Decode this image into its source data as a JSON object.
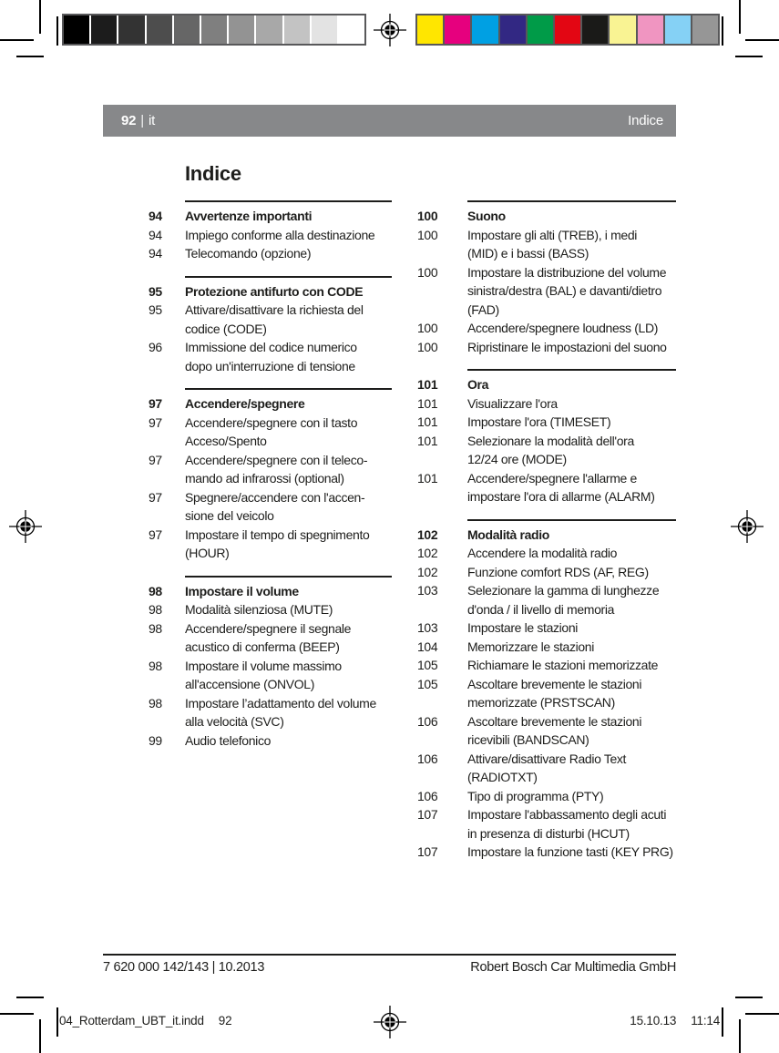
{
  "print_marks": {
    "grayscale_bar": [
      "#000000",
      "#1c1c1c",
      "#333333",
      "#4d4d4d",
      "#666666",
      "#7f7f7f",
      "#939393",
      "#a8a8a8",
      "#c3c3c3",
      "#e3e3e3",
      "#ffffff"
    ],
    "color_bar": [
      "#ffe600",
      "#e6007e",
      "#00a0e3",
      "#322883",
      "#009b48",
      "#e30613",
      "#1a1a18",
      "#f9f393",
      "#f095c1",
      "#85d1f5",
      "#969696"
    ],
    "header_bar_color": "#87888a",
    "text_color": "#1d1d1b"
  },
  "header": {
    "page_number": "92",
    "separator": "|",
    "language": "it",
    "section": "Indice"
  },
  "title": "Indice",
  "toc": {
    "left_column": [
      {
        "page": "94",
        "title": "Avvertenze importanti",
        "items": [
          {
            "page": "94",
            "lines": [
              "Impiego conforme alla destinazione"
            ]
          },
          {
            "page": "94",
            "lines": [
              "Telecomando (opzione)"
            ]
          }
        ]
      },
      {
        "page": "95",
        "title": "Protezione antifurto con CODE",
        "items": [
          {
            "page": "95",
            "lines": [
              "Attivare/disattivare la richiesta del",
              "codice (CODE)"
            ]
          },
          {
            "page": "96",
            "lines": [
              "Immissione del codice numerico",
              "dopo un'interruzione di tensione"
            ]
          }
        ]
      },
      {
        "page": "97",
        "title": "Accendere/spegnere",
        "items": [
          {
            "page": "97",
            "lines": [
              "Accendere/spegnere con il tasto",
              "Acceso/Spento"
            ]
          },
          {
            "page": "97",
            "lines": [
              "Accendere/spegnere con il teleco-",
              "mando ad infrarossi (optional)"
            ]
          },
          {
            "page": "97",
            "lines": [
              "Spegnere/accendere con l'accen-",
              "sione del veicolo"
            ]
          },
          {
            "page": "97",
            "lines": [
              "Impostare il tempo di spegnimento",
              "(HOUR)"
            ]
          }
        ]
      },
      {
        "page": "98",
        "title": "Impostare il volume",
        "items": [
          {
            "page": "98",
            "lines": [
              "Modalità silenziosa (MUTE)"
            ]
          },
          {
            "page": "98",
            "lines": [
              "Accendere/spegnere il segnale",
              "acustico di conferma (BEEP)"
            ]
          },
          {
            "page": "98",
            "lines": [
              "Impostare il volume massimo",
              "all'accensione (ONVOL)"
            ]
          },
          {
            "page": "98",
            "lines": [
              "Impostare l’adattamento del volume",
              "alla velocità (SVC)"
            ]
          },
          {
            "page": "99",
            "lines": [
              "Audio telefonico"
            ]
          }
        ]
      }
    ],
    "right_column": [
      {
        "page": "100",
        "title": "Suono",
        "items": [
          {
            "page": "100",
            "lines": [
              "Impostare gli alti (TREB), i medi",
              "(MID) e i bassi (BASS)"
            ]
          },
          {
            "page": "100",
            "lines": [
              "Impostare la distribuzione del volume",
              "sinistra/destra (BAL) e davanti/dietro",
              "(FAD)"
            ]
          },
          {
            "page": "100",
            "lines": [
              "Accendere/spegnere loudness (LD)"
            ]
          },
          {
            "page": "100",
            "lines": [
              "Ripristinare le impostazioni del suono"
            ]
          }
        ]
      },
      {
        "page": "101",
        "title": "Ora",
        "items": [
          {
            "page": "101",
            "lines": [
              "Visualizzare l'ora"
            ]
          },
          {
            "page": "101",
            "lines": [
              "Impostare l'ora (TIMESET)"
            ]
          },
          {
            "page": "101",
            "lines": [
              "Selezionare la modalità dell'ora",
              "12/24 ore (MODE)"
            ]
          },
          {
            "page": "101",
            "lines": [
              "Accendere/spegnere l'allarme e",
              "impostare l'ora di allarme (ALARM)"
            ]
          }
        ]
      },
      {
        "page": "102",
        "title": "Modalità radio",
        "items": [
          {
            "page": "102",
            "lines": [
              "Accendere la modalità radio"
            ]
          },
          {
            "page": "102",
            "lines": [
              "Funzione comfort RDS (AF, REG)"
            ]
          },
          {
            "page": "103",
            "lines": [
              "Selezionare la gamma di lunghezze",
              "d'onda / il livello di memoria"
            ]
          },
          {
            "page": "103",
            "lines": [
              "Impostare le stazioni"
            ]
          },
          {
            "page": "104",
            "lines": [
              "Memorizzare le stazioni"
            ]
          },
          {
            "page": "105",
            "lines": [
              "Richiamare le stazioni memorizzate"
            ]
          },
          {
            "page": "105",
            "lines": [
              "Ascoltare brevemente le stazioni",
              "memorizzate (PRSTSCAN)"
            ]
          },
          {
            "page": "106",
            "lines": [
              "Ascoltare brevemente le stazioni",
              "ricevibili (BANDSCAN)"
            ]
          },
          {
            "page": "106",
            "lines": [
              "Attivare/disattivare Radio Text",
              "(RADIOTXT)"
            ]
          },
          {
            "page": "106",
            "lines": [
              "Tipo di programma (PTY)"
            ]
          },
          {
            "page": "107",
            "lines": [
              "Impostare l'abbassamento degli acuti",
              "in presenza di disturbi (HCUT)"
            ]
          },
          {
            "page": "107",
            "lines": [
              "Impostare la funzione tasti (KEY PRG)"
            ]
          }
        ]
      }
    ]
  },
  "footer": {
    "part_number": "7 620 000 142/143 | 10.2013",
    "company": "Robert Bosch Car Multimedia GmbH"
  },
  "print_info": {
    "file_name": "04_Rotterdam_UBT_it.indd",
    "page": "92",
    "date": "15.10.13",
    "time": "11:14"
  }
}
